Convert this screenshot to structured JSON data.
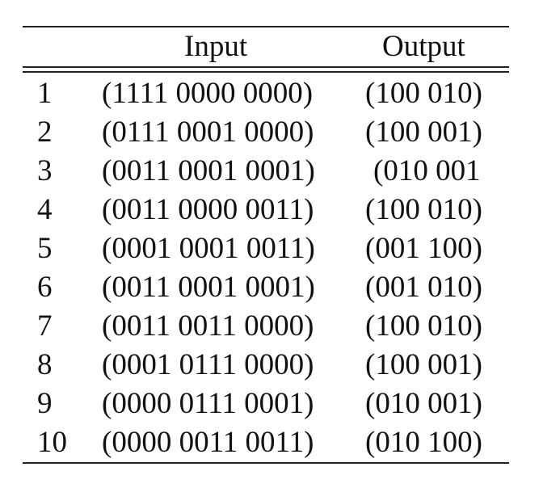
{
  "table": {
    "headers": {
      "index": "",
      "input": "Input",
      "output": "Output"
    },
    "rows": [
      {
        "index": "1",
        "input": "(1111 0000 0000)",
        "output": "(100 010)"
      },
      {
        "index": "2",
        "input": "(0111 0001 0000)",
        "output": "(100 001)"
      },
      {
        "index": "3",
        "input": "(0011 0001 0001)",
        "output": "(010 001"
      },
      {
        "index": "4",
        "input": "(0011 0000 0011)",
        "output": "(100 010)"
      },
      {
        "index": "5",
        "input": "(0001 0001 0011)",
        "output": "(001 100)"
      },
      {
        "index": "6",
        "input": "(0011 0001 0001)",
        "output": "(001 010)"
      },
      {
        "index": "7",
        "input": "(0011 0011 0000)",
        "output": "(100 010)"
      },
      {
        "index": "8",
        "input": "(0001 0111 0000)",
        "output": "(100 001)"
      },
      {
        "index": "9",
        "input": "(0000 0111 0001)",
        "output": "(010 001)"
      },
      {
        "index": "10",
        "input": "(0000 0011 0011)",
        "output": "(010 100)"
      }
    ]
  }
}
